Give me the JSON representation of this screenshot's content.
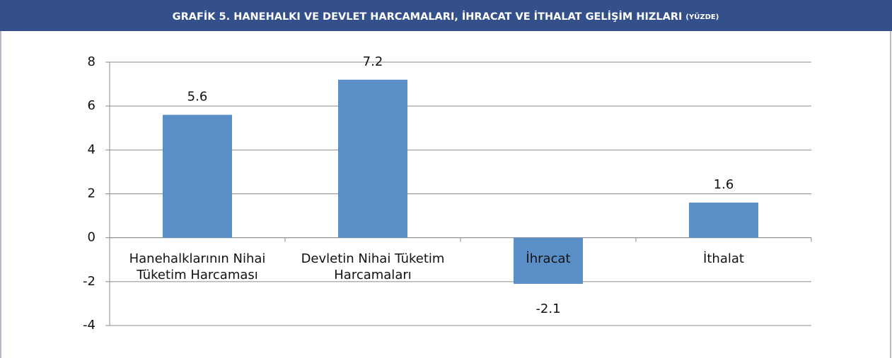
{
  "chart_data": {
    "type": "bar",
    "title": "GRAFİK 5. HANEHALKI VE DEVLET HARCAMALARI, İHRACAT VE İTHALAT GELİŞİM HIZLARI",
    "unit": "(YÜZDE)",
    "categories": [
      "Hanehalklarının Nihai Tüketim Harcaması",
      "Devletin Nihai Tüketim Harcamaları",
      "İhracat",
      "İthalat"
    ],
    "values": [
      5.6,
      7.2,
      -2.1,
      1.6
    ],
    "color": "#5b8fc8",
    "ylim": [
      -4,
      8
    ],
    "yticks": [
      -4,
      -2,
      0,
      2,
      4,
      6,
      8
    ],
    "grid": true
  }
}
